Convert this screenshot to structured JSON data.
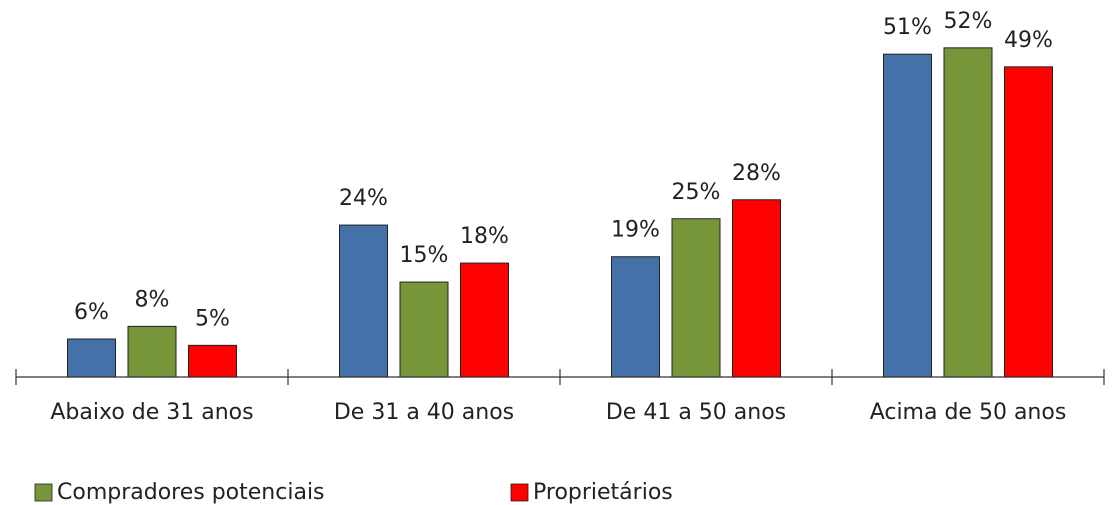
{
  "chart_data": {
    "type": "bar",
    "categories": [
      "Abaixo de 31 anos",
      "De 31 a 40 anos",
      "De 41 a 50 anos",
      "Acima de 50 anos"
    ],
    "series": [
      {
        "color": "#4472a8",
        "values": [
          6,
          24,
          19,
          51
        ],
        "value_labels": [
          "6%",
          "24%",
          "19%",
          "51%"
        ]
      },
      {
        "name": "Compradores potenciais",
        "color": "#77963a",
        "values": [
          8,
          15,
          25,
          52
        ],
        "value_labels": [
          "8%",
          "15%",
          "25%",
          "52%"
        ]
      },
      {
        "name": "Proprietários",
        "color": "#ff0000",
        "values": [
          5,
          18,
          28,
          49
        ],
        "value_labels": [
          "5%",
          "18%",
          "28%",
          "49%"
        ]
      }
    ]
  }
}
